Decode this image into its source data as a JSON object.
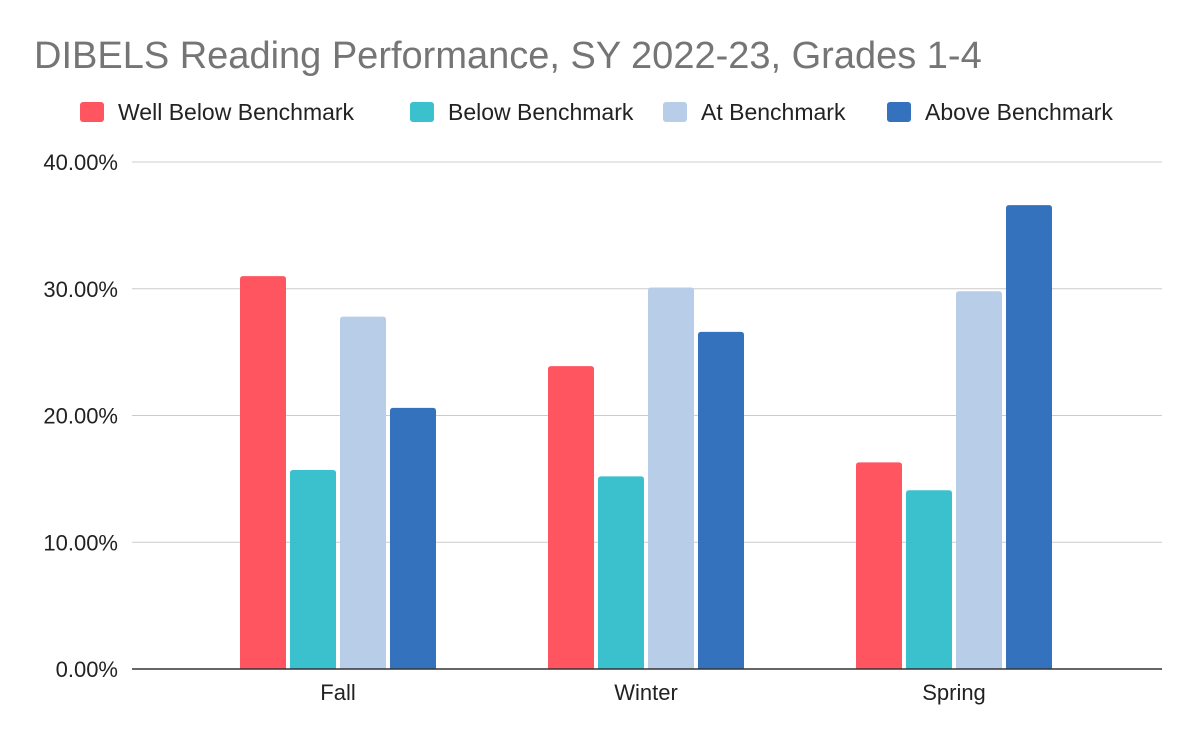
{
  "chart_data": {
    "type": "bar",
    "title": "DIBELS Reading Performance, SY 2022-23, Grades 1-4",
    "xlabel": "",
    "ylabel": "",
    "categories": [
      "Fall",
      "Winter",
      "Spring"
    ],
    "ylim": [
      0,
      40
    ],
    "yticks": [
      0,
      10,
      20,
      30,
      40
    ],
    "ytick_labels": [
      "0.00%",
      "10.00%",
      "20.00%",
      "30.00%",
      "40.00%"
    ],
    "grid": true,
    "legend_position": "top",
    "series": [
      {
        "name": "Well Below Benchmark",
        "color": "#ff5560",
        "values": [
          31.0,
          23.9,
          16.3
        ]
      },
      {
        "name": "Below Benchmark",
        "color": "#3bc1ce",
        "values": [
          15.7,
          15.2,
          14.1
        ]
      },
      {
        "name": "At Benchmark",
        "color": "#b8cde8",
        "values": [
          27.8,
          30.1,
          29.8
        ]
      },
      {
        "name": "Above Benchmark",
        "color": "#3572bd",
        "values": [
          20.6,
          26.6,
          36.6
        ]
      }
    ]
  }
}
